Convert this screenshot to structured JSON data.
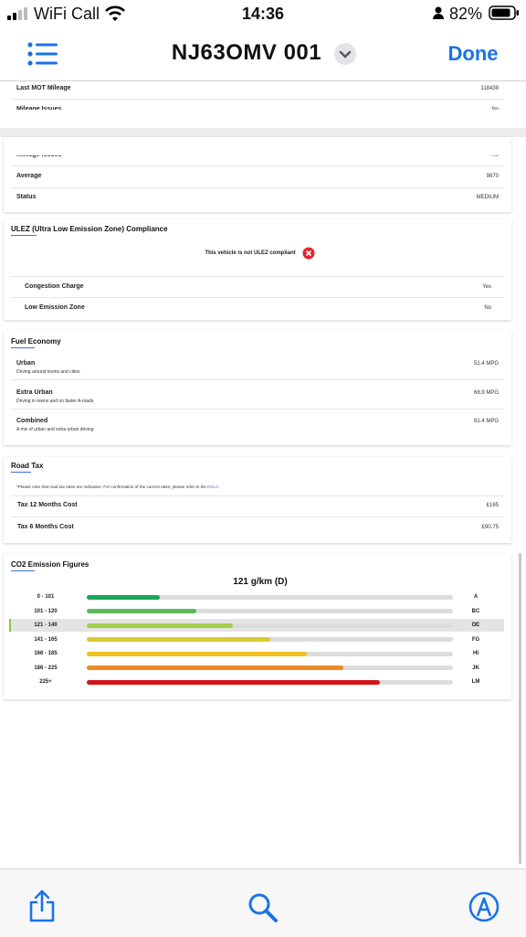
{
  "status_bar": {
    "carrier": "WiFi Call",
    "time": "14:36",
    "battery": "82%"
  },
  "nav_bar": {
    "title": "NJ63OMV 001",
    "done": "Done"
  },
  "mot_card": {
    "rows": [
      {
        "label": "Last MOT Mileage",
        "value": "118439"
      },
      {
        "label": "Mileage Issues",
        "value": "No"
      }
    ]
  },
  "mileage_card": {
    "rows": [
      {
        "label": "Mileage Issues",
        "value": "No"
      },
      {
        "label": "Average",
        "value": "9870"
      },
      {
        "label": "Status",
        "value": "MEDIUM"
      }
    ]
  },
  "ulez_card": {
    "title": "ULEZ (Ultra Low Emission Zone) Compliance",
    "message": "This vehicle is not ULEZ compliant",
    "rows": [
      {
        "label": "Congestion Charge",
        "value": "Yes"
      },
      {
        "label": "Low Emission Zone",
        "value": "No"
      }
    ]
  },
  "fuel_card": {
    "title": "Fuel Economy",
    "rows": [
      {
        "label": "Urban",
        "description": "Driving around towns and cities",
        "value": "51.4 MPG"
      },
      {
        "label": "Extra Urban",
        "description": "Driving in towns and on faster A-roads",
        "value": "68.9 MPG"
      },
      {
        "label": "Combined",
        "description": "A mix of urban and extra urban driving",
        "value": "61.4 MPG"
      }
    ]
  },
  "road_tax_card": {
    "title": "Road Tax",
    "note": "*Please note that road tax rates are indicative. For confirmation of the current rates, please refer to the ",
    "note_link": "DVLA",
    "note_end": ".",
    "rows": [
      {
        "label": "Tax 12 Months Cost",
        "value": "£165"
      },
      {
        "label": "Tax 6 Months Cost",
        "value": "£90.75"
      }
    ]
  },
  "co2_card": {
    "title": "CO2 Emission Figures",
    "headline": "121 g/km (D)",
    "bands": [
      {
        "range": "0 - 101",
        "band": "A"
      },
      {
        "range": "101 - 120",
        "band": "BC"
      },
      {
        "range": "121 - 140",
        "band": "DE"
      },
      {
        "range": "141 - 165",
        "band": "FG"
      },
      {
        "range": "166 - 185",
        "band": "HI"
      },
      {
        "range": "186 - 225",
        "band": "JK"
      },
      {
        "range": "225+",
        "band": "LM"
      }
    ]
  }
}
